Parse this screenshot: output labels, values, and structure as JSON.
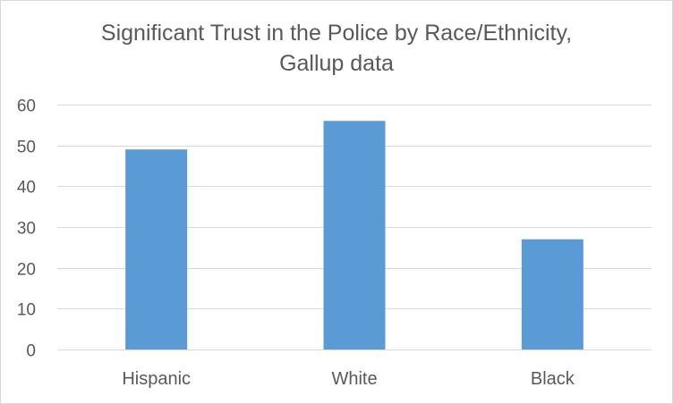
{
  "chart_data": {
    "type": "bar",
    "title_lines": [
      "Significant Trust in the Police by Race/Ethnicity,",
      "Gallup data"
    ],
    "categories": [
      "Hispanic",
      "White",
      "Black"
    ],
    "values": [
      49,
      56,
      27
    ],
    "ylim": [
      0,
      60
    ],
    "yticks": [
      0,
      10,
      20,
      30,
      40,
      50,
      60
    ],
    "xlabel": "",
    "ylabel": "",
    "grid": true,
    "legend": "none",
    "bar_color": "#5b9bd5",
    "grid_color": "#d9d9d9",
    "text_color": "#595959"
  }
}
